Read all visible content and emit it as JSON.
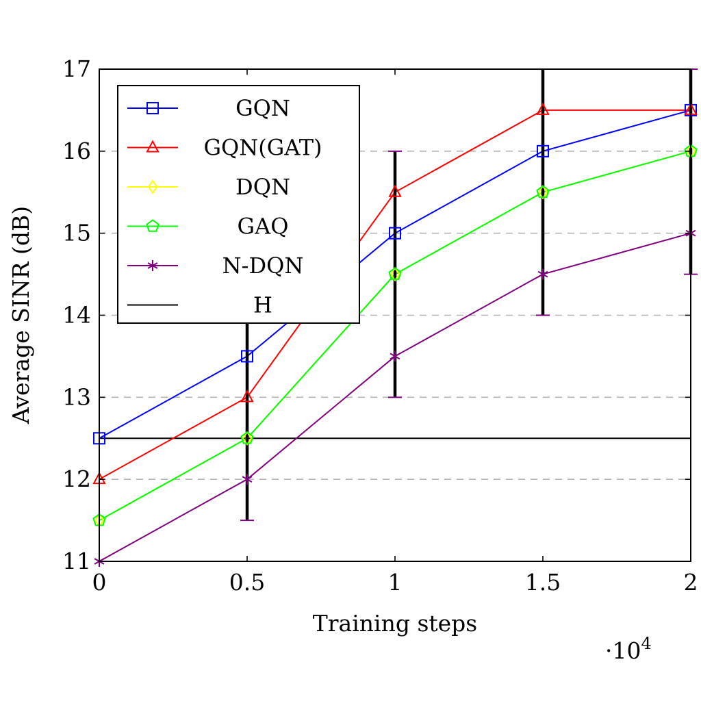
{
  "chart_data": {
    "type": "line",
    "xlabel": "Training steps",
    "ylabel": "Average SINR (dB)",
    "x_multiplier_label": "·10",
    "x_multiplier_exp": "4",
    "xlim": [
      0,
      2
    ],
    "ylim": [
      11,
      17
    ],
    "x_ticks": [
      "0",
      "0.5",
      "1",
      "1.5",
      "2"
    ],
    "y_ticks": [
      "11",
      "12",
      "13",
      "14",
      "15",
      "16",
      "17"
    ],
    "grid": "horizontal dashed",
    "legend_placement": "top-left",
    "x": [
      0,
      0.5,
      1,
      1.5,
      2
    ],
    "series": [
      {
        "name": "GQN",
        "color": "#0000ff",
        "marker": "square",
        "values": [
          12.5,
          13.5,
          15,
          16,
          16.5
        ]
      },
      {
        "name": "GQN(GAT)",
        "color": "#ff0000",
        "marker": "triangle",
        "values": [
          12,
          13,
          15.5,
          16.5,
          16.5
        ]
      },
      {
        "name": "DQN",
        "color": "#ffff00",
        "marker": "diamond",
        "values": [
          11.5,
          12.5,
          14.5,
          15.5,
          16
        ]
      },
      {
        "name": "GAQ",
        "color": "#00ff00",
        "marker": "pentagon",
        "values": [
          11.5,
          12.5,
          14.5,
          15.5,
          16
        ]
      },
      {
        "name": "N-DQN",
        "color": "#800080",
        "marker": "star",
        "values": [
          11,
          12,
          13.5,
          14.5,
          15
        ]
      },
      {
        "name": "H",
        "color": "#000000",
        "marker": "none",
        "values": [
          12.5,
          12.5,
          12.5,
          12.5,
          12.5
        ]
      }
    ],
    "error_bars": [
      {
        "x": 0.5,
        "low": 11.5,
        "high": 14.5
      },
      {
        "x": 1,
        "low": 13,
        "high": 16
      },
      {
        "x": 1.5,
        "low": 14,
        "high": 17
      },
      {
        "x": 2,
        "low": 14.5,
        "high": 17
      }
    ]
  }
}
